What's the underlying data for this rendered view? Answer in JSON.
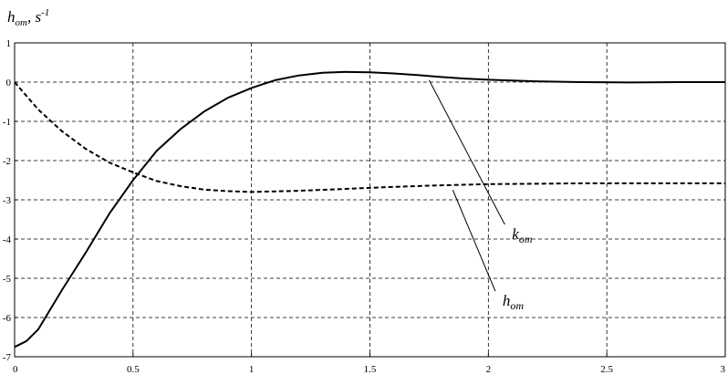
{
  "chart_data": {
    "type": "line",
    "ylabel": {
      "main": "h",
      "sub": "om",
      "rest": ", s",
      "sup": "-1"
    },
    "xlim": [
      0,
      3
    ],
    "ylim": [
      -7,
      1
    ],
    "x_ticks": [
      {
        "value": 0,
        "label": "0"
      },
      {
        "value": 0.5,
        "label": "0.5"
      },
      {
        "value": 1,
        "label": "1"
      },
      {
        "value": 1.5,
        "label": "1.5"
      },
      {
        "value": 2,
        "label": "2"
      },
      {
        "value": 2.5,
        "label": "2.5"
      },
      {
        "value": 3,
        "label": "3"
      }
    ],
    "y_ticks": [
      {
        "value": 1,
        "label": "1"
      },
      {
        "value": 0,
        "label": "0"
      },
      {
        "value": -1,
        "label": "-1"
      },
      {
        "value": -2,
        "label": "-2"
      },
      {
        "value": -3,
        "label": "-3"
      },
      {
        "value": -4,
        "label": "-4"
      },
      {
        "value": -5,
        "label": "-5"
      },
      {
        "value": -6,
        "label": "-6"
      },
      {
        "value": -7,
        "label": "-7"
      }
    ],
    "grid": "dashed",
    "series": [
      {
        "name": "k_om",
        "label_main": "k",
        "label_sub": "om",
        "style": "solid",
        "color": "#000000",
        "label_at": {
          "x": 2.1,
          "y": -4.0
        },
        "leader_to": {
          "x": 1.75,
          "y": 0.05
        },
        "x": [
          0,
          0.05,
          0.1,
          0.2,
          0.3,
          0.4,
          0.5,
          0.6,
          0.7,
          0.8,
          0.9,
          1.0,
          1.05,
          1.1,
          1.2,
          1.3,
          1.4,
          1.5,
          1.6,
          1.7,
          1.8,
          1.9,
          2.0,
          2.2,
          2.4,
          2.6,
          2.8,
          3.0
        ],
        "y": [
          -6.75,
          -6.6,
          -6.3,
          -5.3,
          -4.35,
          -3.35,
          -2.5,
          -1.75,
          -1.2,
          -0.75,
          -0.4,
          -0.15,
          -0.05,
          0.05,
          0.17,
          0.24,
          0.26,
          0.25,
          0.22,
          0.18,
          0.13,
          0.09,
          0.06,
          0.02,
          0.0,
          -0.01,
          0.0,
          0.0
        ]
      },
      {
        "name": "h_om",
        "label_main": "h",
        "label_sub": "om",
        "style": "dashed",
        "color": "#000000",
        "label_at": {
          "x": 2.06,
          "y": -5.7
        },
        "leader_to": {
          "x": 1.85,
          "y": -2.75
        },
        "x": [
          0,
          0.05,
          0.1,
          0.2,
          0.3,
          0.4,
          0.5,
          0.6,
          0.7,
          0.8,
          0.9,
          1.0,
          1.2,
          1.4,
          1.6,
          1.8,
          2.0,
          2.2,
          2.4,
          2.6,
          2.8,
          3.0
        ],
        "y": [
          0,
          -0.35,
          -0.7,
          -1.25,
          -1.7,
          -2.05,
          -2.3,
          -2.52,
          -2.65,
          -2.74,
          -2.78,
          -2.8,
          -2.77,
          -2.72,
          -2.67,
          -2.63,
          -2.6,
          -2.59,
          -2.58,
          -2.58,
          -2.58,
          -2.58
        ]
      }
    ]
  }
}
